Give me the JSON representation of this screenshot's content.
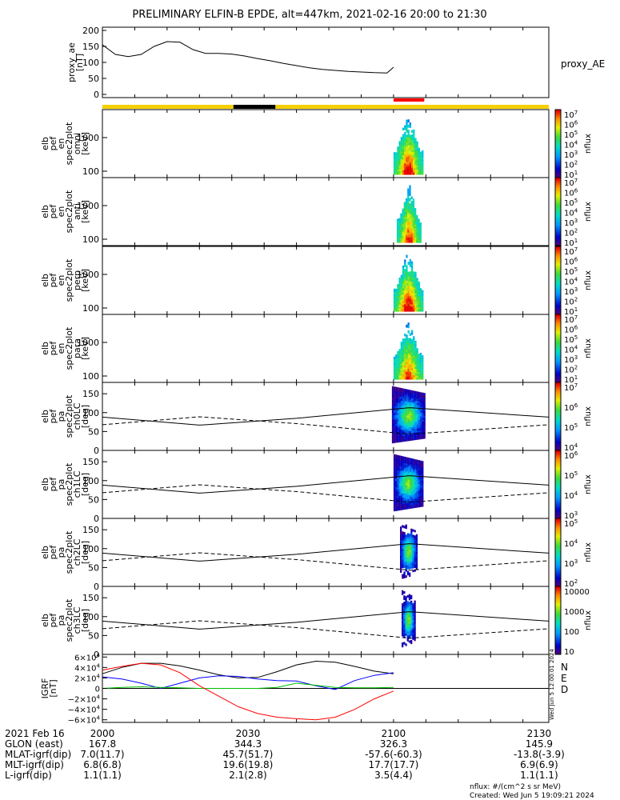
{
  "title": "PRELIMINARY ELFIN-B EPDE, alt=447km, 2021-02-16 20:00 to 21:30",
  "watermark": "Wed Jun 5 12:00:01 2024",
  "creation_label": "Created: Wed Jun  5 19:09:21 2024",
  "units_note": "nflux: #/(cm^2 s sr MeV)",
  "chart_data": [
    {
      "id": "proxy_ae",
      "type": "line",
      "ylabel": "proxy_ae\n[nT]",
      "ylabel_lines": [
        "proxy_ae",
        "[nT]"
      ],
      "right_label": "proxy_AE",
      "ylim": [
        -10,
        210
      ],
      "yticks": [
        "200",
        "150",
        "100",
        "50",
        "0"
      ],
      "ytick_values": [
        200,
        150,
        100,
        50,
        0
      ],
      "x": [
        0,
        4,
        8,
        12,
        16,
        20,
        24,
        28,
        32,
        36,
        40,
        44,
        48,
        52,
        56,
        60,
        64,
        68,
        72,
        76,
        80,
        84,
        88,
        90
      ],
      "values": [
        155,
        125,
        118,
        125,
        150,
        165,
        163,
        140,
        128,
        128,
        126,
        120,
        112,
        105,
        97,
        90,
        83,
        78,
        75,
        72,
        70,
        68,
        67,
        85
      ]
    },
    {
      "id": "status_bar",
      "type": "table",
      "segments": [
        {
          "from": 0,
          "to": 40.5,
          "color": "#f5d000"
        },
        {
          "from": 40.5,
          "to": 53.5,
          "color": "#000000"
        },
        {
          "from": 53.5,
          "to": 138,
          "color": "#f5d000"
        }
      ],
      "science_zone": {
        "from": 90.0,
        "to": 99.5,
        "color": "#ff0000"
      }
    },
    {
      "id": "omni",
      "type": "heatmap",
      "ylabel_lines": [
        "elb",
        "pef",
        "en",
        "spec2plot",
        "omni",
        "[keV]"
      ],
      "yticks": [
        "1000",
        "100"
      ],
      "colorbar_ticks": [
        "10^7",
        "10^6",
        "10^5",
        "10^4",
        "10^3",
        "10^2",
        "10^1"
      ],
      "colorbar_label": "nflux",
      "extent": {
        "x0": 90.0,
        "x1": 99.5,
        "peak": 2.7
      }
    },
    {
      "id": "anti",
      "type": "heatmap",
      "ylabel_lines": [
        "elb",
        "pef",
        "en",
        "spec2plot",
        "anti",
        "[keV]"
      ],
      "yticks": [
        "1000",
        "100"
      ],
      "colorbar_ticks": [
        "10^7",
        "10^6",
        "10^5",
        "10^4",
        "10^3",
        "10^2",
        "10^1"
      ],
      "colorbar_label": "nflux",
      "extent": {
        "x0": 91.0,
        "x1": 98.5,
        "peak": 2.4
      }
    },
    {
      "id": "perp",
      "type": "heatmap",
      "ylabel_lines": [
        "elb",
        "pef",
        "en",
        "spec2plot",
        "perp",
        "[keV]"
      ],
      "yticks": [
        "1000",
        "100"
      ],
      "colorbar_ticks": [
        "10^7",
        "10^6",
        "10^5",
        "10^4",
        "10^3",
        "10^2",
        "10^1"
      ],
      "colorbar_label": "nflux",
      "extent": {
        "x0": 90.0,
        "x1": 99.5,
        "peak": 2.7
      }
    },
    {
      "id": "para",
      "type": "heatmap",
      "ylabel_lines": [
        "elb",
        "pef",
        "en",
        "spec2plot",
        "para",
        "[keV]"
      ],
      "yticks": [
        "1000",
        "100"
      ],
      "colorbar_ticks": [
        "10^7",
        "10^6",
        "10^5",
        "10^4",
        "10^3",
        "10^2",
        "10^1"
      ],
      "colorbar_label": "nflux",
      "extent": {
        "x0": 90.0,
        "x1": 99.5,
        "peak": 2.2
      }
    },
    {
      "id": "ch0LC",
      "type": "heatmap",
      "ylabel_lines": [
        "elb",
        "pef",
        "pa",
        "spec2plot",
        "ch0LC",
        "[deg]"
      ],
      "ylim": [
        0,
        180
      ],
      "yticks": [
        "150",
        "100",
        "50",
        "0"
      ],
      "ytick_values": [
        150,
        100,
        50,
        0
      ],
      "colorbar_ticks": [
        "10^7",
        "10^6",
        "10^5",
        "10^4"
      ],
      "colorbar_label": "nflux",
      "extent": {
        "x0": 89.5,
        "x1": 100.0
      }
    },
    {
      "id": "ch1LC",
      "type": "heatmap",
      "ylabel_lines": [
        "elb",
        "pef",
        "pa",
        "spec2plot",
        "ch1LC",
        "[deg]"
      ],
      "ylim": [
        0,
        180
      ],
      "yticks": [
        "150",
        "100",
        "50",
        "0"
      ],
      "ytick_values": [
        150,
        100,
        50,
        0
      ],
      "colorbar_ticks": [
        "10^6",
        "10^5",
        "10^4",
        "10^3"
      ],
      "colorbar_label": "nflux",
      "extent": {
        "x0": 90.0,
        "x1": 99.5
      }
    },
    {
      "id": "ch2LC",
      "type": "heatmap",
      "ylabel_lines": [
        "elb",
        "pef",
        "pa",
        "spec2plot",
        "ch2LC",
        "[deg]"
      ],
      "ylim": [
        0,
        180
      ],
      "yticks": [
        "150",
        "100",
        "50",
        "0"
      ],
      "ytick_values": [
        150,
        100,
        50,
        0
      ],
      "colorbar_ticks": [
        "10^5",
        "10^4",
        "10^3",
        "10^2"
      ],
      "colorbar_label": "nflux",
      "extent": {
        "x0": 92.0,
        "x1": 97.5
      }
    },
    {
      "id": "ch3LC",
      "type": "heatmap",
      "ylabel_lines": [
        "elb",
        "pef",
        "pa",
        "spec2plot",
        "ch3LC",
        "[deg]"
      ],
      "ylim": [
        0,
        180
      ],
      "yticks": [
        "150",
        "100",
        "50",
        "0"
      ],
      "ytick_values": [
        150,
        100,
        50,
        0
      ],
      "colorbar_ticks": [
        "10000",
        "1000",
        "100",
        "10"
      ],
      "colorbar_label": "nflux",
      "extent": {
        "x0": 92.5,
        "x1": 97.0
      }
    },
    {
      "id": "igrf",
      "type": "line",
      "ylabel_lines": [
        "IGRF",
        "[nT]"
      ],
      "ylim": [
        -65000,
        65000
      ],
      "yticks": [
        "6×10^4",
        "4×10^4",
        "2×10^4",
        "0",
        "−2×10^4",
        "−4×10^4",
        "−6×10^4"
      ],
      "ytick_values": [
        60000,
        40000,
        20000,
        0,
        -20000,
        -40000,
        -60000
      ],
      "legend": [
        "N",
        "E",
        "D"
      ],
      "legend_colors": [
        "#0000ff",
        "#00c000",
        "#ff0000"
      ],
      "x": [
        0,
        6,
        12,
        18,
        24,
        30,
        36,
        42,
        48,
        54,
        60,
        66,
        72,
        78,
        84,
        90
      ],
      "series": [
        {
          "color": "#000000",
          "values": [
            28000,
            40000,
            48000,
            48000,
            43000,
            35000,
            26000,
            20000,
            21000,
            32000,
            45000,
            52000,
            50000,
            42000,
            33000,
            28000
          ]
        },
        {
          "color": "#0000ff",
          "values": [
            22000,
            18000,
            10000,
            0,
            10000,
            20000,
            24000,
            23000,
            18000,
            15000,
            14000,
            5000,
            -2000,
            15000,
            25000,
            30000
          ]
        },
        {
          "color": "#00c000",
          "values": [
            0,
            2000,
            3000,
            2000,
            1000,
            0,
            0,
            0,
            0,
            2000,
            10000,
            6000,
            2000,
            1000,
            1000,
            2000
          ]
        },
        {
          "color": "#ff0000",
          "values": [
            35000,
            42000,
            48000,
            45000,
            30000,
            5000,
            -15000,
            -35000,
            -48000,
            -55000,
            -58000,
            -60000,
            -55000,
            -40000,
            -20000,
            -5000
          ]
        }
      ]
    }
  ],
  "axis_rows": [
    {
      "label": "2021 Feb 16",
      "values": [
        "2000",
        "2030",
        "2100",
        "2130"
      ]
    },
    {
      "label": "GLON (east)",
      "values": [
        "167.8",
        "344.3",
        "326.3",
        "145.9"
      ]
    },
    {
      "label": "MLAT-igrf(dip)",
      "values": [
        "7.0(11.7)",
        "45.7(51.7)",
        "-57.6(-60.3)",
        "-13.8(-3.9)"
      ]
    },
    {
      "label": "MLT-igrf(dip)",
      "values": [
        "6.8(6.8)",
        "19.6(19.8)",
        "17.7(17.7)",
        "6.9(6.9)"
      ]
    },
    {
      "label": "L-igrf(dip)",
      "values": [
        "1.1(1.1)",
        "2.1(2.8)",
        "3.5(4.4)",
        "1.1(1.1)"
      ]
    }
  ]
}
